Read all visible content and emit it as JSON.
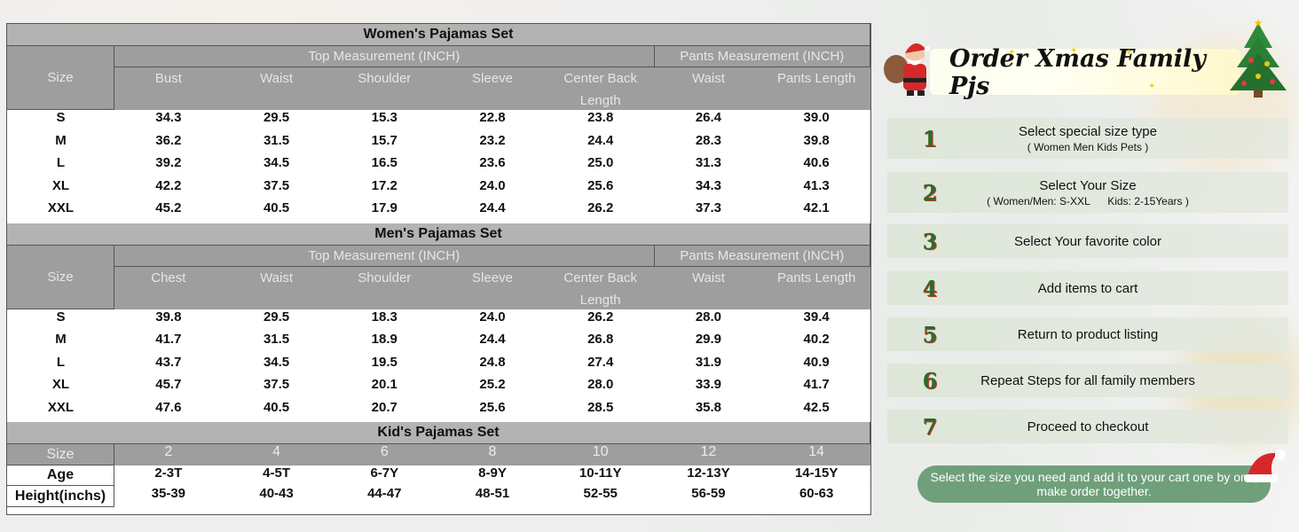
{
  "women": {
    "title": "Women's Pajamas Set",
    "size_label": "Size",
    "top_group": "Top Measurement (INCH)",
    "pants_group": "Pants Measurement (INCH)",
    "columns": [
      "Bust",
      "Waist",
      "Shoulder",
      "Sleeve",
      "Center Back\nLength",
      "Waist",
      "Pants Length"
    ],
    "rows": [
      [
        "S",
        "34.3",
        "29.5",
        "15.3",
        "22.8",
        "23.8",
        "26.4",
        "39.0"
      ],
      [
        "M",
        "36.2",
        "31.5",
        "15.7",
        "23.2",
        "24.4",
        "28.3",
        "39.8"
      ],
      [
        "L",
        "39.2",
        "34.5",
        "16.5",
        "23.6",
        "25.0",
        "31.3",
        "40.6"
      ],
      [
        "XL",
        "42.2",
        "37.5",
        "17.2",
        "24.0",
        "25.6",
        "34.3",
        "41.3"
      ],
      [
        "XXL",
        "45.2",
        "40.5",
        "17.9",
        "24.4",
        "26.2",
        "37.3",
        "42.1"
      ]
    ]
  },
  "men": {
    "title": "Men's Pajamas Set",
    "size_label": "Size",
    "top_group": "Top Measurement (INCH)",
    "pants_group": "Pants Measurement (INCH)",
    "columns": [
      "Chest",
      "Waist",
      "Shoulder",
      "Sleeve",
      "Center Back\nLength",
      "Waist",
      "Pants Length"
    ],
    "rows": [
      [
        "S",
        "39.8",
        "29.5",
        "18.3",
        "24.0",
        "26.2",
        "28.0",
        "39.4"
      ],
      [
        "M",
        "41.7",
        "31.5",
        "18.9",
        "24.4",
        "26.8",
        "29.9",
        "40.2"
      ],
      [
        "L",
        "43.7",
        "34.5",
        "19.5",
        "24.8",
        "27.4",
        "31.9",
        "40.9"
      ],
      [
        "XL",
        "45.7",
        "37.5",
        "20.1",
        "25.2",
        "28.0",
        "33.9",
        "41.7"
      ],
      [
        "XXL",
        "47.6",
        "40.5",
        "20.7",
        "25.6",
        "28.5",
        "35.8",
        "42.5"
      ]
    ]
  },
  "kids": {
    "title": "Kid's Pajamas Set",
    "size_label": "Size",
    "sizes": [
      "2",
      "4",
      "6",
      "8",
      "10",
      "12",
      "14"
    ],
    "age_label": "Age",
    "ages": [
      "2-3T",
      "4-5T",
      "6-7Y",
      "8-9Y",
      "10-11Y",
      "12-13Y",
      "14-15Y"
    ],
    "height_label": "Height(inchs)",
    "heights": [
      "35-39",
      "40-43",
      "44-47",
      "48-51",
      "52-55",
      "56-59",
      "60-63"
    ]
  },
  "order": {
    "title": "Order Xmas Family Pjs",
    "steps": [
      {
        "num": "1",
        "text": "Select special size type",
        "sub": "( Women Men Kids Pets )"
      },
      {
        "num": "2",
        "text": "Select Your Size",
        "sub": "( Women/Men: S-XXL      Kids: 2-15Years )"
      },
      {
        "num": "3",
        "text": "Select Your favorite color",
        "sub": ""
      },
      {
        "num": "4",
        "text": "Add items to cart",
        "sub": ""
      },
      {
        "num": "5",
        "text": "Return to product listing",
        "sub": ""
      },
      {
        "num": "6",
        "text": "Repeat Steps for all family members",
        "sub": ""
      },
      {
        "num": "7",
        "text": "Proceed to checkout",
        "sub": ""
      }
    ],
    "note": "Select the size you need and add it to your cart one by one, make order together."
  },
  "colors": {
    "header_gray": "#9e9e9e",
    "title_gray": "#b3b3b3",
    "step_green": "#2e6b2a",
    "pill_green": "#6fa07a"
  },
  "icons": [
    "santa-icon",
    "christmas-tree-icon",
    "santa-hat-icon"
  ]
}
